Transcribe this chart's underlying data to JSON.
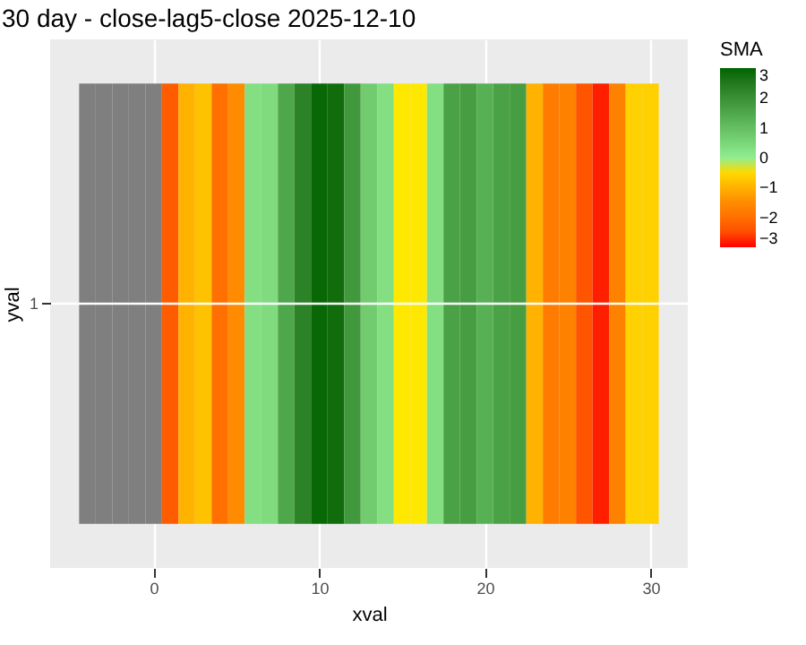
{
  "chart_data": {
    "type": "heatmap",
    "title": "30 day - close-lag5-close  2025-12-10",
    "xlabel": "xval",
    "ylabel": "yval",
    "clabel": "SMA",
    "x": [
      -4,
      -3,
      -2,
      -1,
      0,
      1,
      2,
      3,
      4,
      5,
      6,
      7,
      8,
      9,
      10,
      11,
      12,
      13,
      14,
      15,
      16,
      17,
      18,
      19,
      20,
      21,
      22,
      23,
      24,
      25,
      26,
      27,
      28,
      29,
      30
    ],
    "y_categories": [
      "1"
    ],
    "cells": [
      [
        null,
        null,
        null,
        null,
        null,
        -2.3,
        -1.0,
        -0.8,
        -2.0,
        -1.5,
        0.3,
        0.4,
        1.5,
        2.3,
        2.9,
        2.8,
        1.8,
        0.7,
        0.3,
        -0.3,
        -0.3,
        0.3,
        1.6,
        1.7,
        1.3,
        1.6,
        1.7,
        -1.0,
        -1.8,
        -1.7,
        -2.4,
        -2.9,
        -1.7,
        -0.6,
        -0.6
      ]
    ],
    "xlim": [
      -6.25,
      32.25
    ],
    "xticks": [
      0,
      10,
      20,
      30
    ],
    "clim": [
      -3,
      3
    ],
    "cticks": [
      -3,
      -2,
      -1,
      0,
      1,
      2,
      3
    ],
    "grid": true
  }
}
